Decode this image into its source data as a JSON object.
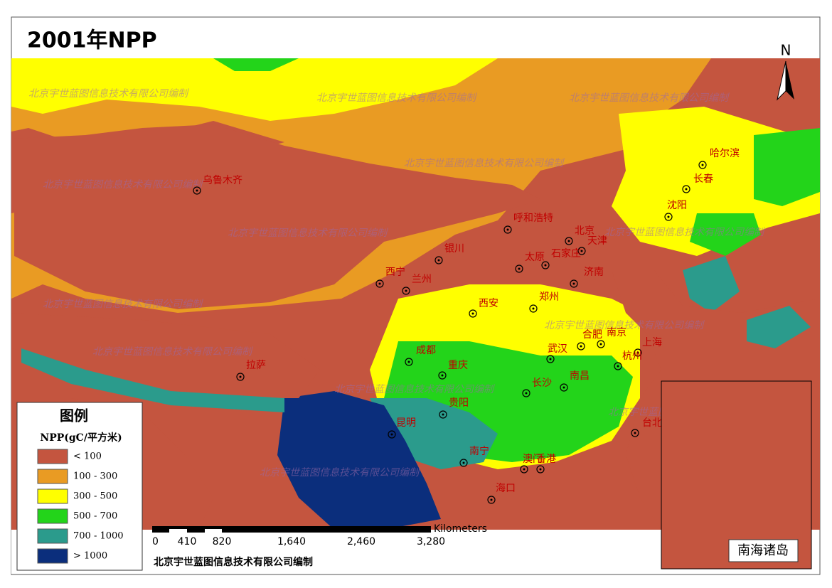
{
  "header": {
    "title": "2001年NPP"
  },
  "north": "N",
  "legend": {
    "title": "图例",
    "unit": "NPP(gC/平方米)",
    "items": [
      {
        "label": "< 100",
        "color": "#c4553f"
      },
      {
        "label": "100 - 300",
        "color": "#e99b23"
      },
      {
        "label": "300 - 500",
        "color": "#ffff00"
      },
      {
        "label": "500 - 700",
        "color": "#23d41a"
      },
      {
        "label": "700 - 1000",
        "color": "#2b9b8c"
      },
      {
        "label": "> 1000",
        "color": "#0b2e7c"
      }
    ]
  },
  "cities": [
    "乌鲁木齐",
    "哈尔滨",
    "长春",
    "沈阳",
    "呼和浩特",
    "北京",
    "天津",
    "银川",
    "太原",
    "石家庄",
    "济南",
    "西宁",
    "兰州",
    "郑州",
    "西安",
    "合肥",
    "南京",
    "上海",
    "杭州",
    "拉萨",
    "成都",
    "重庆",
    "武汉",
    "长沙",
    "南昌",
    "贵阳",
    "昆明",
    "南宁",
    "澳门",
    "香港",
    "台北",
    "海口"
  ],
  "scale": {
    "ticks": [
      "0",
      "410",
      "820",
      "1,640",
      "2,460",
      "3,280"
    ],
    "unit": "Kilometers"
  },
  "credit": "北京宇世蓝图信息技术有限公司编制",
  "watermark": "北京宇世蓝图信息技术有限公司编制",
  "inset": {
    "label": "南海诸岛"
  }
}
